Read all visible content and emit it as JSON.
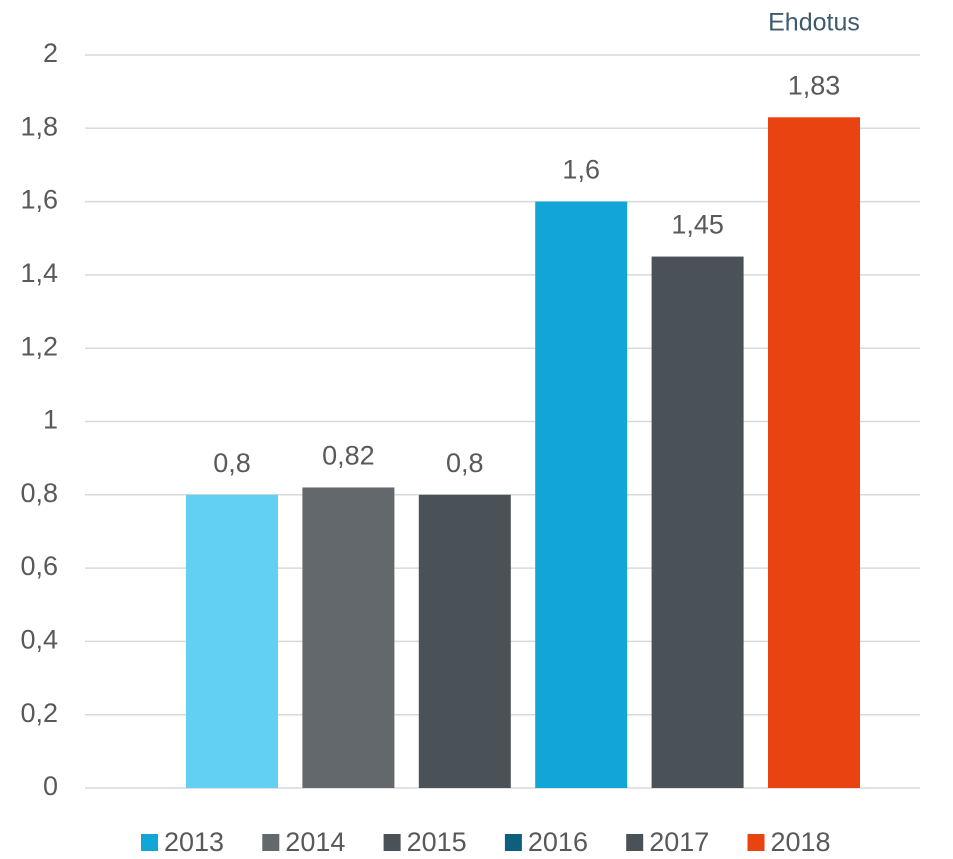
{
  "chart_data": {
    "type": "bar",
    "annotation": "Ehdotus",
    "series": [
      {
        "name": "2013",
        "color": "#12a6d6",
        "bar_color": "#62d0f2",
        "values": [
          0.8
        ],
        "value_labels": [
          "0,8"
        ]
      },
      {
        "name": "2014",
        "color": "#63686c",
        "bar_color": "#63686c",
        "values": [
          0.82
        ],
        "value_labels": [
          "0,82"
        ]
      },
      {
        "name": "2015",
        "color": "#4a5157",
        "bar_color": "#4a5157",
        "values": [
          0.8
        ],
        "value_labels": [
          "0,8"
        ]
      },
      {
        "name": "2016",
        "color": "#0e5f7d",
        "bar_color": "#12a6d6",
        "values": [
          1.6
        ],
        "value_labels": [
          "1,6"
        ]
      },
      {
        "name": "2017",
        "color": "#4a5157",
        "bar_color": "#4a5157",
        "values": [
          1.45
        ],
        "value_labels": [
          "1,45"
        ]
      },
      {
        "name": "2018",
        "color": "#e84311",
        "bar_color": "#e84311",
        "values": [
          1.83
        ],
        "value_labels": [
          "1,83"
        ]
      }
    ],
    "ylim": [
      0,
      2
    ],
    "yticks": [
      0,
      {
        "value": 0.2,
        "label": "0,2"
      },
      {
        "value": 0.4,
        "label": "0,4"
      },
      {
        "value": 0.6,
        "label": "0,6"
      },
      {
        "value": 0.8,
        "label": "0,8"
      },
      1,
      {
        "value": 1.2,
        "label": "1,2"
      },
      {
        "value": 1.4,
        "label": "1,4"
      },
      {
        "value": 1.6,
        "label": "1,6"
      },
      {
        "value": 1.8,
        "label": "1,8"
      },
      2
    ],
    "grid": true
  }
}
